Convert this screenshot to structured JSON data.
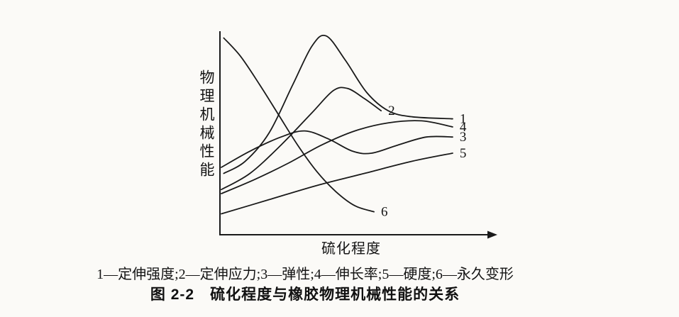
{
  "figure": {
    "caption": "1—定伸强度;2—定伸应力;3—弹性;4—伸长率;5—硬度;6—永久变形",
    "title": "图 2-2　硫化程度与橡胶物理机械性能的关系"
  },
  "chart_data": {
    "type": "line",
    "title": "图 2-2 硫化程度与橡胶物理机械性能的关系",
    "xlabel": "硫化程度",
    "ylabel": "物理机械性能",
    "x_range": [
      0,
      100
    ],
    "y_range": [
      0,
      100
    ],
    "grid": false,
    "legend_position": "caption-below",
    "axis_color": "#1a1a1a",
    "line_color": "#1a1a1a",
    "x_axis_arrow": true,
    "y_axis_arrow": false,
    "legend": [
      {
        "label": "1",
        "name": "定伸强度"
      },
      {
        "label": "2",
        "name": "定伸应力"
      },
      {
        "label": "3",
        "name": "弹性"
      },
      {
        "label": "4",
        "name": "伸长率"
      },
      {
        "label": "5",
        "name": "硬度"
      },
      {
        "label": "6",
        "name": "永久变形"
      }
    ],
    "series": [
      {
        "name": "定伸强度",
        "label": "1",
        "points": [
          [
            1,
            30
          ],
          [
            10,
            36
          ],
          [
            20,
            50
          ],
          [
            30,
            74
          ],
          [
            38,
            93
          ],
          [
            44,
            98
          ],
          [
            52,
            86
          ],
          [
            61,
            70
          ],
          [
            70,
            61
          ],
          [
            80,
            58
          ],
          [
            97,
            57
          ]
        ]
      },
      {
        "name": "定伸应力",
        "label": "2",
        "points": [
          [
            0,
            22
          ],
          [
            12,
            30
          ],
          [
            25,
            44
          ],
          [
            38,
            60
          ],
          [
            47,
            71
          ],
          [
            53,
            72
          ],
          [
            60,
            67
          ],
          [
            67,
            61
          ]
        ]
      },
      {
        "name": "弹性",
        "label": "3",
        "points": [
          [
            0,
            33
          ],
          [
            12,
            41
          ],
          [
            25,
            48
          ],
          [
            35,
            51
          ],
          [
            45,
            47
          ],
          [
            55,
            41
          ],
          [
            63,
            40
          ],
          [
            74,
            44
          ],
          [
            86,
            48
          ],
          [
            97,
            48
          ]
        ]
      },
      {
        "name": "伸长率",
        "label": "4",
        "points": [
          [
            0,
            20
          ],
          [
            14,
            27
          ],
          [
            28,
            35
          ],
          [
            42,
            44
          ],
          [
            56,
            51
          ],
          [
            70,
            55
          ],
          [
            84,
            56
          ],
          [
            97,
            53
          ]
        ]
      },
      {
        "name": "硬度",
        "label": "5",
        "points": [
          [
            0,
            10
          ],
          [
            20,
            17
          ],
          [
            40,
            24
          ],
          [
            60,
            30
          ],
          [
            80,
            36
          ],
          [
            97,
            40
          ]
        ]
      },
      {
        "name": "永久变形",
        "label": "6",
        "points": [
          [
            1,
            97
          ],
          [
            8,
            88
          ],
          [
            16,
            74
          ],
          [
            24,
            59
          ],
          [
            32,
            44
          ],
          [
            40,
            31
          ],
          [
            48,
            21
          ],
          [
            56,
            14
          ],
          [
            64,
            11
          ]
        ]
      }
    ]
  }
}
